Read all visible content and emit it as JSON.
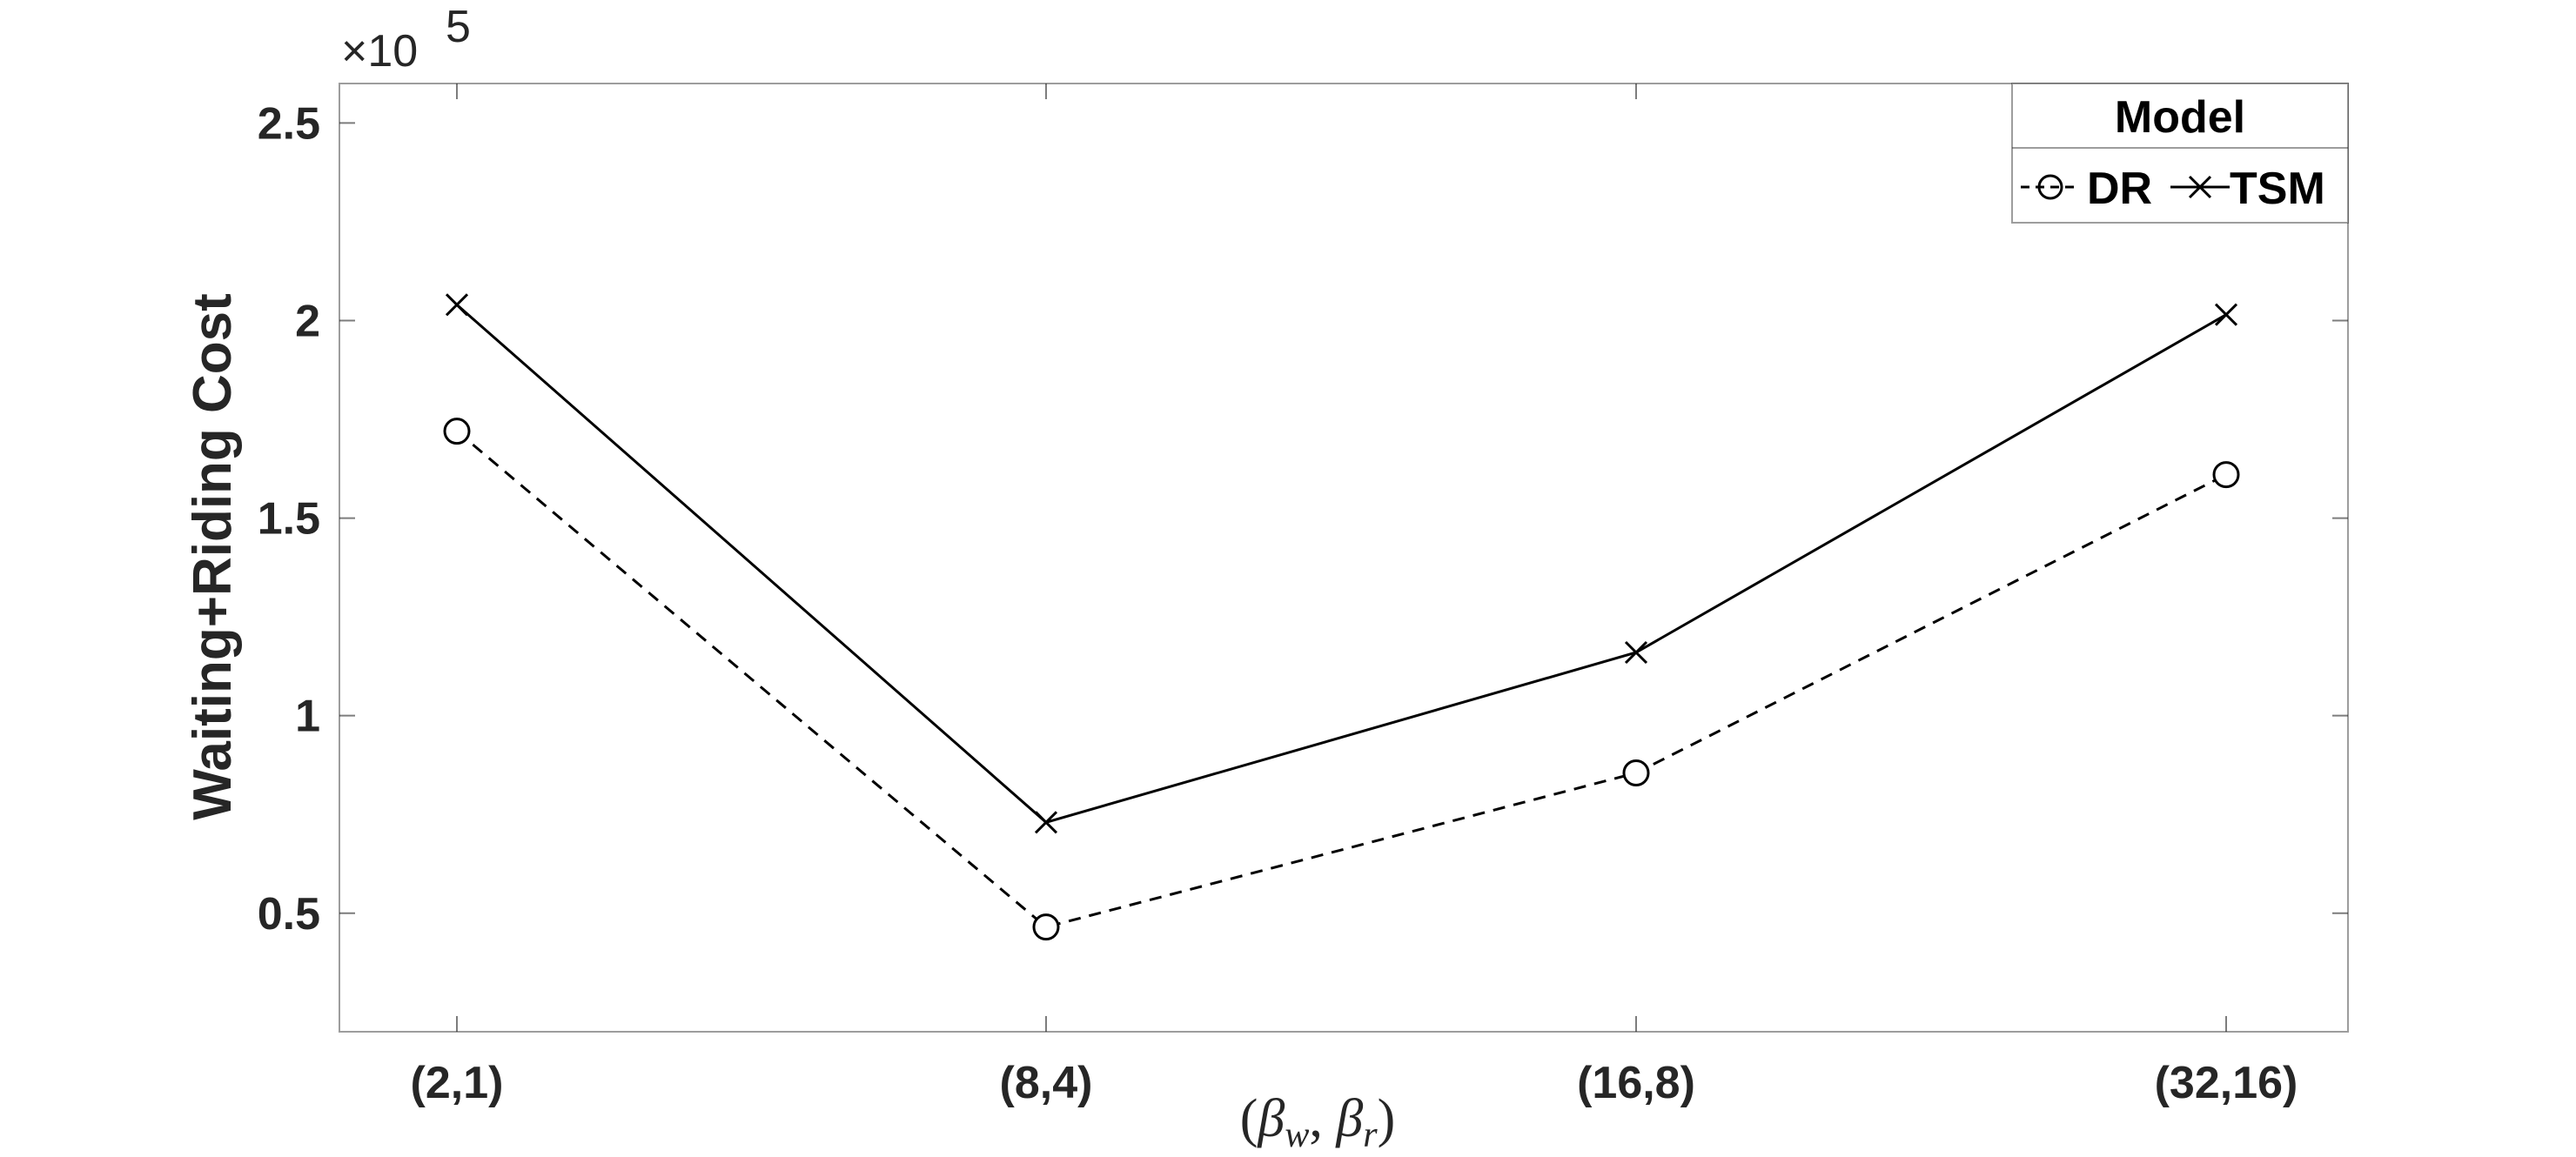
{
  "chart_data": {
    "type": "line",
    "categories": [
      "(2,1)",
      "(8,4)",
      "(16,8)",
      "(32,16)"
    ],
    "series": [
      {
        "name": "DR",
        "values": [
          172000,
          46500,
          85500,
          161000
        ],
        "line_style": "dashed",
        "marker": "circle",
        "color": "#000000"
      },
      {
        "name": "TSM",
        "values": [
          204000,
          73000,
          116000,
          201500
        ],
        "line_style": "solid",
        "marker": "x",
        "color": "#000000"
      }
    ],
    "ylim": [
      20000,
      260000
    ],
    "yticks": [
      50000,
      100000,
      150000,
      200000,
      250000
    ],
    "ytick_labels": [
      "0.5",
      "1",
      "1.5",
      "2",
      "2.5"
    ],
    "y_exponent_label": "×10",
    "y_exponent_power": "5",
    "ylabel": "Waiting+Riding Cost",
    "xlabel_parts": {
      "open": "(",
      "sym1": "β",
      "sub1": "w",
      "sep": ", ",
      "sym2": "β",
      "sub2": "r",
      "close": ")"
    },
    "legend": {
      "title": "Model",
      "position": "top-right"
    },
    "grid": false
  }
}
